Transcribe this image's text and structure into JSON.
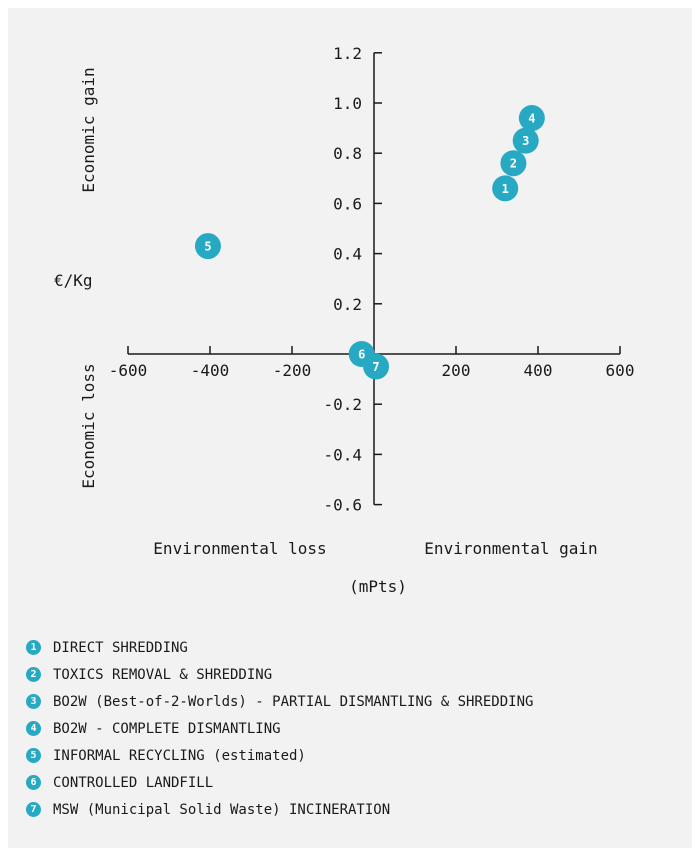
{
  "chart_data": {
    "type": "scatter",
    "title": "",
    "xlabel_left": "Environmental loss",
    "xlabel_right": "Environmental gain",
    "xunit": "(mPts)",
    "ylabel_top": "Economic gain",
    "ylabel_bottom": "Economic loss",
    "yunit": "€/Kg",
    "xlim": [
      -600,
      600
    ],
    "ylim": [
      -0.6,
      1.2
    ],
    "xticks": [
      -600,
      -400,
      -200,
      200,
      400,
      600
    ],
    "xtick_labels": [
      "-600",
      "-400",
      "-200",
      "200",
      "400",
      "600"
    ],
    "yticks": [
      1.2,
      1.0,
      0.8,
      0.6,
      0.4,
      0.2,
      -0.2,
      -0.4,
      -0.6
    ],
    "ytick_labels": [
      "1.2",
      "1.0",
      "0.8",
      "0.6",
      "0.4",
      "0.2",
      "-0.2",
      "-0.4",
      "-0.6"
    ],
    "grid": false,
    "marker_color": "#27a9c4",
    "points": [
      {
        "id": "1",
        "x": 320,
        "y": 0.66
      },
      {
        "id": "2",
        "x": 340,
        "y": 0.76
      },
      {
        "id": "3",
        "x": 370,
        "y": 0.85
      },
      {
        "id": "4",
        "x": 385,
        "y": 0.94
      },
      {
        "id": "5",
        "x": -405,
        "y": 0.43
      },
      {
        "id": "6",
        "x": -30,
        "y": 0.0
      },
      {
        "id": "7",
        "x": 5,
        "y": -0.05
      }
    ]
  },
  "legend": [
    {
      "id": "1",
      "label": "DIRECT SHREDDING"
    },
    {
      "id": "2",
      "label": "TOXICS REMOVAL & SHREDDING"
    },
    {
      "id": "3",
      "label": "BO2W (Best-of-2-Worlds) - PARTIAL DISMANTLING & SHREDDING"
    },
    {
      "id": "4",
      "label": "BO2W - COMPLETE DISMANTLING"
    },
    {
      "id": "5",
      "label": "INFORMAL RECYCLING (estimated)"
    },
    {
      "id": "6",
      "label": "CONTROLLED LANDFILL"
    },
    {
      "id": "7",
      "label": "MSW (Municipal Solid Waste) INCINERATION"
    }
  ]
}
